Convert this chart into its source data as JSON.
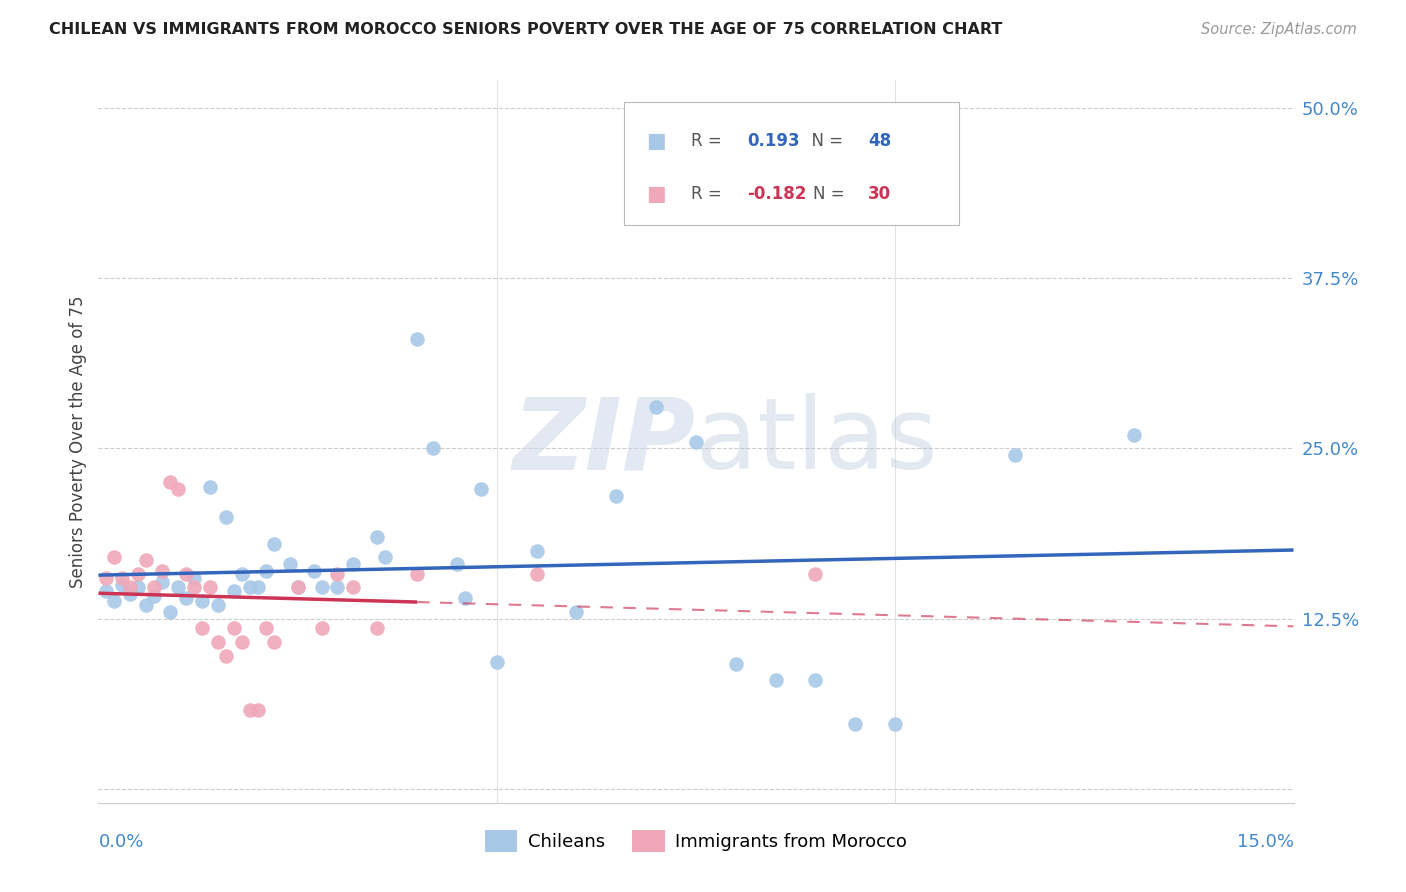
{
  "title": "CHILEAN VS IMMIGRANTS FROM MOROCCO SENIORS POVERTY OVER THE AGE OF 75 CORRELATION CHART",
  "source": "Source: ZipAtlas.com",
  "ylabel": "Seniors Poverty Over the Age of 75",
  "xlim": [
    0.0,
    0.15
  ],
  "ylim": [
    -0.01,
    0.52
  ],
  "yticks": [
    0.0,
    0.125,
    0.25,
    0.375,
    0.5
  ],
  "ytick_labels": [
    "",
    "12.5%",
    "25.0%",
    "37.5%",
    "50.0%"
  ],
  "chileans_color": "#a8c8e8",
  "morocco_color": "#f0a8b8",
  "trend_chileans_color": "#3366bb",
  "trend_morocco_color": "#cc3355",
  "chileans_R": "0.193",
  "chileans_N": "48",
  "morocco_R": "-0.182",
  "morocco_N": "30",
  "chileans": [
    [
      0.001,
      0.145
    ],
    [
      0.002,
      0.138
    ],
    [
      0.003,
      0.15
    ],
    [
      0.004,
      0.143
    ],
    [
      0.005,
      0.148
    ],
    [
      0.006,
      0.135
    ],
    [
      0.007,
      0.142
    ],
    [
      0.008,
      0.152
    ],
    [
      0.009,
      0.13
    ],
    [
      0.01,
      0.148
    ],
    [
      0.011,
      0.14
    ],
    [
      0.012,
      0.155
    ],
    [
      0.013,
      0.138
    ],
    [
      0.014,
      0.222
    ],
    [
      0.015,
      0.135
    ],
    [
      0.016,
      0.2
    ],
    [
      0.017,
      0.145
    ],
    [
      0.018,
      0.158
    ],
    [
      0.019,
      0.148
    ],
    [
      0.02,
      0.148
    ],
    [
      0.021,
      0.16
    ],
    [
      0.022,
      0.18
    ],
    [
      0.024,
      0.165
    ],
    [
      0.025,
      0.148
    ],
    [
      0.027,
      0.16
    ],
    [
      0.028,
      0.148
    ],
    [
      0.03,
      0.148
    ],
    [
      0.032,
      0.165
    ],
    [
      0.035,
      0.185
    ],
    [
      0.036,
      0.17
    ],
    [
      0.04,
      0.33
    ],
    [
      0.042,
      0.25
    ],
    [
      0.045,
      0.165
    ],
    [
      0.046,
      0.14
    ],
    [
      0.048,
      0.22
    ],
    [
      0.05,
      0.093
    ],
    [
      0.055,
      0.175
    ],
    [
      0.06,
      0.13
    ],
    [
      0.065,
      0.215
    ],
    [
      0.07,
      0.28
    ],
    [
      0.075,
      0.255
    ],
    [
      0.08,
      0.092
    ],
    [
      0.085,
      0.08
    ],
    [
      0.09,
      0.08
    ],
    [
      0.095,
      0.048
    ],
    [
      0.1,
      0.048
    ],
    [
      0.115,
      0.245
    ],
    [
      0.13,
      0.26
    ]
  ],
  "morocco": [
    [
      0.001,
      0.155
    ],
    [
      0.002,
      0.17
    ],
    [
      0.003,
      0.155
    ],
    [
      0.004,
      0.148
    ],
    [
      0.005,
      0.158
    ],
    [
      0.006,
      0.168
    ],
    [
      0.007,
      0.148
    ],
    [
      0.008,
      0.16
    ],
    [
      0.009,
      0.225
    ],
    [
      0.01,
      0.22
    ],
    [
      0.011,
      0.158
    ],
    [
      0.012,
      0.148
    ],
    [
      0.013,
      0.118
    ],
    [
      0.014,
      0.148
    ],
    [
      0.015,
      0.108
    ],
    [
      0.016,
      0.098
    ],
    [
      0.017,
      0.118
    ],
    [
      0.018,
      0.108
    ],
    [
      0.019,
      0.058
    ],
    [
      0.02,
      0.058
    ],
    [
      0.021,
      0.118
    ],
    [
      0.022,
      0.108
    ],
    [
      0.025,
      0.148
    ],
    [
      0.028,
      0.118
    ],
    [
      0.03,
      0.158
    ],
    [
      0.032,
      0.148
    ],
    [
      0.035,
      0.118
    ],
    [
      0.04,
      0.158
    ],
    [
      0.055,
      0.158
    ],
    [
      0.09,
      0.158
    ]
  ]
}
